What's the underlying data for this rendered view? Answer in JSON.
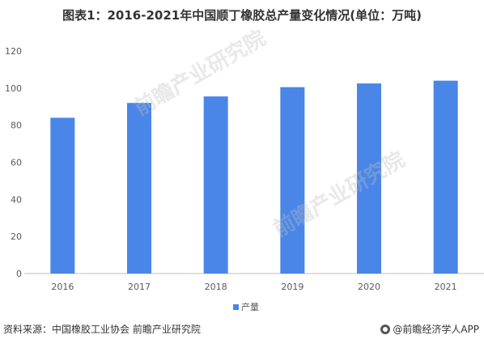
{
  "title": "图表1：2016-2021年中国顺丁橡胶总产量变化情况(单位：万吨)",
  "chart_data": {
    "type": "bar",
    "categories": [
      "2016",
      "2017",
      "2018",
      "2019",
      "2020",
      "2021"
    ],
    "series": [
      {
        "name": "产量",
        "values": [
          84,
          92,
          95.5,
          100.5,
          102.5,
          104
        ]
      }
    ],
    "yticks": [
      0,
      20,
      40,
      60,
      80,
      100,
      120
    ],
    "ylim": [
      0,
      120
    ],
    "grid": false,
    "legend_position": "bottom",
    "bar_color": "#4A86E8"
  },
  "watermark_text": "前瞻产业研究院",
  "footer": {
    "source": "资料来源：中国橡胶工业协会 前瞻产业研究院",
    "brand": "@前瞻经济学人APP"
  }
}
